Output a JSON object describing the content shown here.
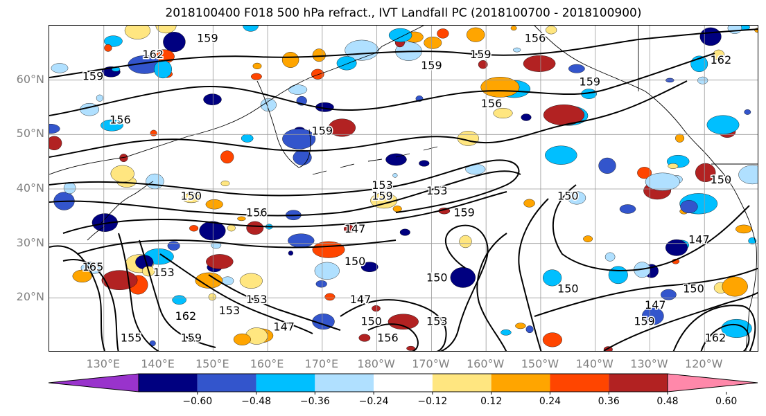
{
  "title": "2018100400 F018 500 hPa refract., IVT Landfall PC (2018100700 - 2018100900)",
  "map": {
    "lat_labels": [
      {
        "text": "60°N",
        "lat": 60
      },
      {
        "text": "50°N",
        "lat": 50
      },
      {
        "text": "40°N",
        "lat": 40
      },
      {
        "text": "30°N",
        "lat": 30
      },
      {
        "text": "20°N",
        "lat": 20
      }
    ],
    "lon_labels": [
      {
        "text": "130°E",
        "lon": 130
      },
      {
        "text": "140°E",
        "lon": 140
      },
      {
        "text": "150°E",
        "lon": 150
      },
      {
        "text": "160°E",
        "lon": 160
      },
      {
        "text": "170°E",
        "lon": 170
      },
      {
        "text": "180°W",
        "lon": 180
      },
      {
        "text": "170°W",
        "lon": 190
      },
      {
        "text": "160°W",
        "lon": 200
      },
      {
        "text": "150°W",
        "lon": 210
      },
      {
        "text": "140°W",
        "lon": 220
      },
      {
        "text": "130°W",
        "lon": 230
      },
      {
        "text": "120°W",
        "lon": 240
      }
    ],
    "extent": {
      "lon_min": 120,
      "lon_max": 250,
      "lat_min": 10,
      "lat_max": 70
    },
    "contour_labels": [
      {
        "text": "156",
        "lon": 209,
        "lat": 67
      },
      {
        "text": "159",
        "lon": 128,
        "lat": 60
      },
      {
        "text": "162",
        "lon": 139,
        "lat": 64
      },
      {
        "text": "159",
        "lon": 149,
        "lat": 67
      },
      {
        "text": "159",
        "lon": 190,
        "lat": 62
      },
      {
        "text": "159",
        "lon": 199,
        "lat": 64
      },
      {
        "text": "159",
        "lon": 219,
        "lat": 59
      },
      {
        "text": "156",
        "lon": 201,
        "lat": 55
      },
      {
        "text": "156",
        "lon": 133,
        "lat": 52
      },
      {
        "text": "159",
        "lon": 170,
        "lat": 50
      },
      {
        "text": "162",
        "lon": 243,
        "lat": 63
      },
      {
        "text": "153",
        "lon": 181,
        "lat": 40
      },
      {
        "text": "159",
        "lon": 181,
        "lat": 38
      },
      {
        "text": "153",
        "lon": 191,
        "lat": 39
      },
      {
        "text": "150",
        "lon": 146,
        "lat": 38
      },
      {
        "text": "156",
        "lon": 158,
        "lat": 35
      },
      {
        "text": "147",
        "lon": 176,
        "lat": 32
      },
      {
        "text": "159",
        "lon": 196,
        "lat": 35
      },
      {
        "text": "150",
        "lon": 215,
        "lat": 38
      },
      {
        "text": "150",
        "lon": 243,
        "lat": 41
      },
      {
        "text": "147",
        "lon": 239,
        "lat": 30
      },
      {
        "text": "150",
        "lon": 238,
        "lat": 21
      },
      {
        "text": "150",
        "lon": 215,
        "lat": 21
      },
      {
        "text": "165",
        "lon": 128,
        "lat": 25
      },
      {
        "text": "153",
        "lon": 141,
        "lat": 24
      },
      {
        "text": "150",
        "lon": 176,
        "lat": 26
      },
      {
        "text": "147",
        "lon": 177,
        "lat": 19
      },
      {
        "text": "150",
        "lon": 191,
        "lat": 23
      },
      {
        "text": "153",
        "lon": 153,
        "lat": 17
      },
      {
        "text": "153",
        "lon": 158,
        "lat": 19
      },
      {
        "text": "162",
        "lon": 145,
        "lat": 16
      },
      {
        "text": "159",
        "lon": 146,
        "lat": 12
      },
      {
        "text": "155",
        "lon": 135,
        "lat": 12
      },
      {
        "text": "147",
        "lon": 163,
        "lat": 14
      },
      {
        "text": "150",
        "lon": 179,
        "lat": 15
      },
      {
        "text": "153",
        "lon": 191,
        "lat": 15
      },
      {
        "text": "156",
        "lon": 182,
        "lat": 12
      },
      {
        "text": "147",
        "lon": 231,
        "lat": 18
      },
      {
        "text": "159",
        "lon": 229,
        "lat": 15
      },
      {
        "text": "162",
        "lon": 242,
        "lat": 12
      }
    ]
  },
  "colorbar": {
    "colors": [
      "#9933cc",
      "#000080",
      "#3355cc",
      "#00bfff",
      "#b0e0ff",
      "#ffffff",
      "#ffe680",
      "#ffa500",
      "#ff4500",
      "#b22222",
      "#ff88aa"
    ],
    "ticks": [
      "−0.60",
      "−0.48",
      "−0.36",
      "−0.24",
      "−0.12",
      "0.12",
      "0.24",
      "0.36",
      "0.48",
      "0.60"
    ]
  }
}
